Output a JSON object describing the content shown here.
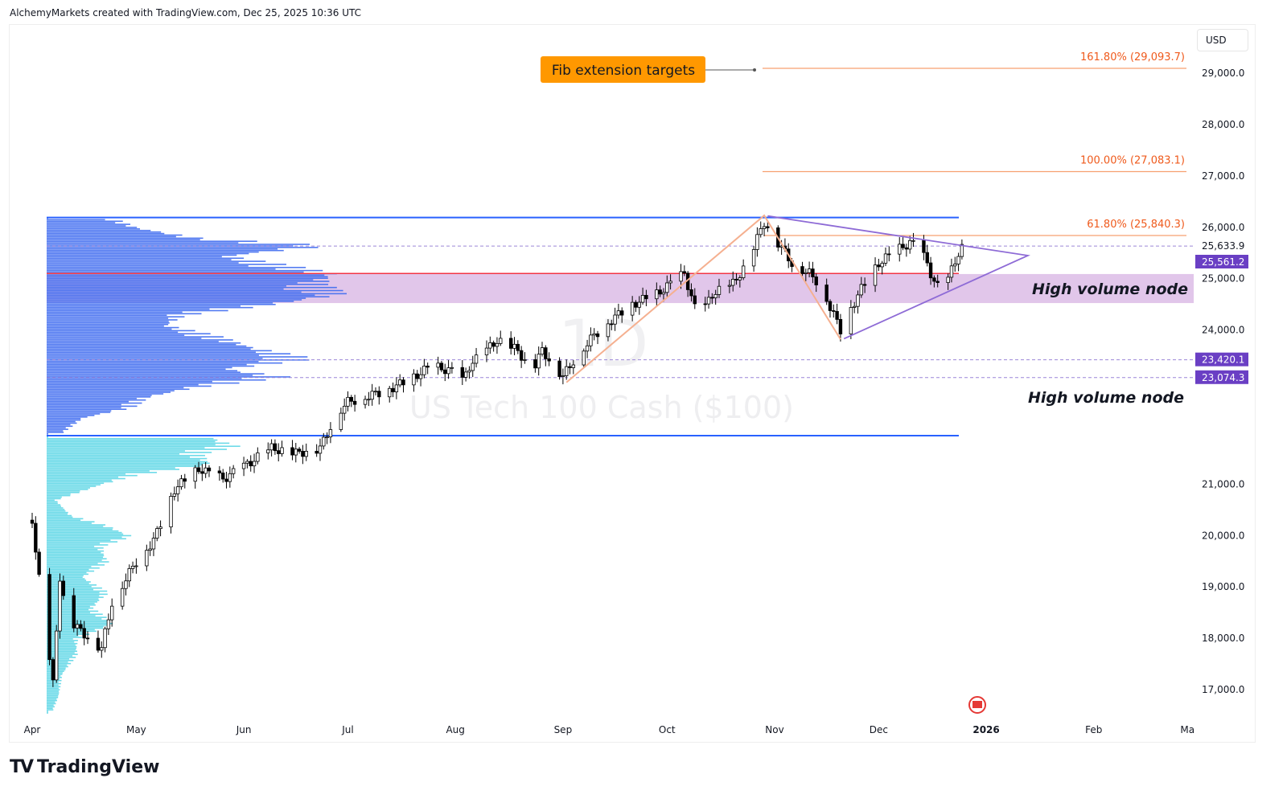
{
  "header": {
    "attribution": "AlchemyMarkets created with TradingView.com, Dec 25, 2025 10:36 UTC"
  },
  "brand": {
    "name": "TradingView",
    "logo_text": "TV"
  },
  "currency_button": "USD",
  "colors": {
    "up": "#ffffff",
    "down": "#000000",
    "fib": "#f57c00",
    "fib_label": "#ef5a1c",
    "triangle": "#8e6bd6",
    "hvn_band": "#e1c6ea",
    "profile_upper": "#3f6cf0",
    "profile_lower": "#5cd6e6",
    "blue_line": "#2962ff",
    "red_line": "#f23645",
    "badge": "#6a3fc4",
    "callout": "#ff9800"
  },
  "chart_data": {
    "type": "candlestick",
    "title": "US Tech 100 Cash ($100)",
    "interval": "1D",
    "ylim": [
      16500,
      29800
    ],
    "y_ticks": [
      17000,
      18000,
      19000,
      20000,
      21000,
      22000,
      23000,
      24000,
      25000,
      26000,
      27000,
      28000,
      29000
    ],
    "y_tick_labels": [
      "17,000.0",
      "18,000.0",
      "19,000.0",
      "20,000.0",
      "21,000.0",
      "",
      "",
      "24,000.0",
      "25,000.0",
      "26,000.0",
      "27,000.0",
      "28,000.0",
      "29,000.0"
    ],
    "x_ticks": [
      {
        "label": "Apr",
        "day": 91
      },
      {
        "label": "May",
        "day": 121
      },
      {
        "label": "Jun",
        "day": 152
      },
      {
        "label": "Jul",
        "day": 182
      },
      {
        "label": "Aug",
        "day": 213
      },
      {
        "label": "Sep",
        "day": 244
      },
      {
        "label": "Oct",
        "day": 274
      },
      {
        "label": "Nov",
        "day": 305
      },
      {
        "label": "Dec",
        "day": 335
      },
      {
        "label": "2026",
        "day": 366
      },
      {
        "label": "Feb",
        "day": 397
      },
      {
        "label": "Ma",
        "day": 424
      }
    ],
    "price_path": [
      [
        91,
        20300
      ],
      [
        94,
        18600
      ],
      [
        97,
        17100
      ],
      [
        99,
        19200
      ],
      [
        101,
        18400
      ],
      [
        104,
        18200
      ],
      [
        111,
        17800
      ],
      [
        114,
        18700
      ],
      [
        121,
        19500
      ],
      [
        126,
        19900
      ],
      [
        132,
        20900
      ],
      [
        139,
        21300
      ],
      [
        146,
        21100
      ],
      [
        151,
        21300
      ],
      [
        160,
        21700
      ],
      [
        167,
        21600
      ],
      [
        174,
        21700
      ],
      [
        179,
        22400
      ],
      [
        182,
        22600
      ],
      [
        192,
        22800
      ],
      [
        199,
        23000
      ],
      [
        206,
        23300
      ],
      [
        212,
        23200
      ],
      [
        213,
        22700
      ],
      [
        217,
        23300
      ],
      [
        225,
        23800
      ],
      [
        231,
        23600
      ],
      [
        235,
        23200
      ],
      [
        238,
        23600
      ],
      [
        244,
        23100
      ],
      [
        248,
        23500
      ],
      [
        253,
        23900
      ],
      [
        258,
        24200
      ],
      [
        264,
        24500
      ],
      [
        271,
        24700
      ],
      [
        279,
        25100
      ],
      [
        283,
        24200
      ],
      [
        287,
        24700
      ],
      [
        293,
        24900
      ],
      [
        297,
        25300
      ],
      [
        302,
        26100
      ],
      [
        307,
        25600
      ],
      [
        310,
        25300
      ],
      [
        315,
        25100
      ],
      [
        318,
        24900
      ],
      [
        324,
        24000
      ],
      [
        326,
        24300
      ],
      [
        330,
        24800
      ],
      [
        335,
        25300
      ],
      [
        339,
        25500
      ],
      [
        344,
        25700
      ],
      [
        347,
        25600
      ],
      [
        350,
        25100
      ],
      [
        353,
        24700
      ],
      [
        355,
        25000
      ],
      [
        358,
        25500
      ],
      [
        359,
        25600
      ]
    ],
    "volume_profile_upper": [
      [
        26180,
        0.22
      ],
      [
        26000,
        0.3
      ],
      [
        25800,
        0.5
      ],
      [
        25650,
        0.92
      ],
      [
        25450,
        0.6
      ],
      [
        25300,
        0.75
      ],
      [
        25100,
        0.96
      ],
      [
        24900,
        0.9
      ],
      [
        24700,
        0.97
      ],
      [
        24550,
        0.8
      ],
      [
        24300,
        0.45
      ],
      [
        24100,
        0.4
      ],
      [
        23900,
        0.55
      ],
      [
        23650,
        0.7
      ],
      [
        23450,
        0.86
      ],
      [
        23250,
        0.6
      ],
      [
        23100,
        0.78
      ],
      [
        22900,
        0.5
      ],
      [
        22700,
        0.33
      ],
      [
        22500,
        0.28
      ],
      [
        22300,
        0.12
      ],
      [
        22000,
        0.05
      ]
    ],
    "volume_profile_lower": [
      [
        21920,
        0.55
      ],
      [
        21750,
        0.62
      ],
      [
        21600,
        0.5
      ],
      [
        21400,
        0.55
      ],
      [
        21200,
        0.3
      ],
      [
        21000,
        0.18
      ],
      [
        20700,
        0.03
      ],
      [
        20400,
        0.08
      ],
      [
        20200,
        0.2
      ],
      [
        20000,
        0.28
      ],
      [
        19800,
        0.18
      ],
      [
        19500,
        0.2
      ],
      [
        19200,
        0.12
      ],
      [
        18900,
        0.2
      ],
      [
        18600,
        0.15
      ],
      [
        18300,
        0.22
      ],
      [
        18000,
        0.1
      ],
      [
        17700,
        0.1
      ],
      [
        17300,
        0.05
      ],
      [
        16900,
        0.04
      ],
      [
        16600,
        0.02
      ]
    ],
    "fib_levels": [
      {
        "label": "161.80% (29,093.7)",
        "price": 29093.7
      },
      {
        "label": "100.00% (27,083.1)",
        "price": 27083.1
      },
      {
        "label": "61.80% (25,840.3)",
        "price": 25840.3
      }
    ],
    "price_badges": [
      {
        "label": "25,561.2",
        "price": 25561.2
      },
      {
        "label": "23,420.1",
        "price": 23420.1
      },
      {
        "label": "23,074.3",
        "price": 23074.3
      }
    ],
    "price_marker": {
      "label": "25,633.9",
      "price": 25633.9
    },
    "hvn_zone": [
      24525,
      25090
    ],
    "red_line": 25100,
    "blue_lines": [
      26190,
      21945
    ],
    "annotations": {
      "fib_callout": "Fib extension targets",
      "hvn_upper": "High volume node",
      "hvn_lower": "High volume node"
    },
    "zigzag": [
      [
        245,
        22980
      ],
      [
        302,
        26230
      ],
      [
        324,
        23820
      ]
    ],
    "triangle": [
      [
        303,
        26220
      ],
      [
        378,
        25450
      ],
      [
        325,
        23830
      ]
    ]
  }
}
